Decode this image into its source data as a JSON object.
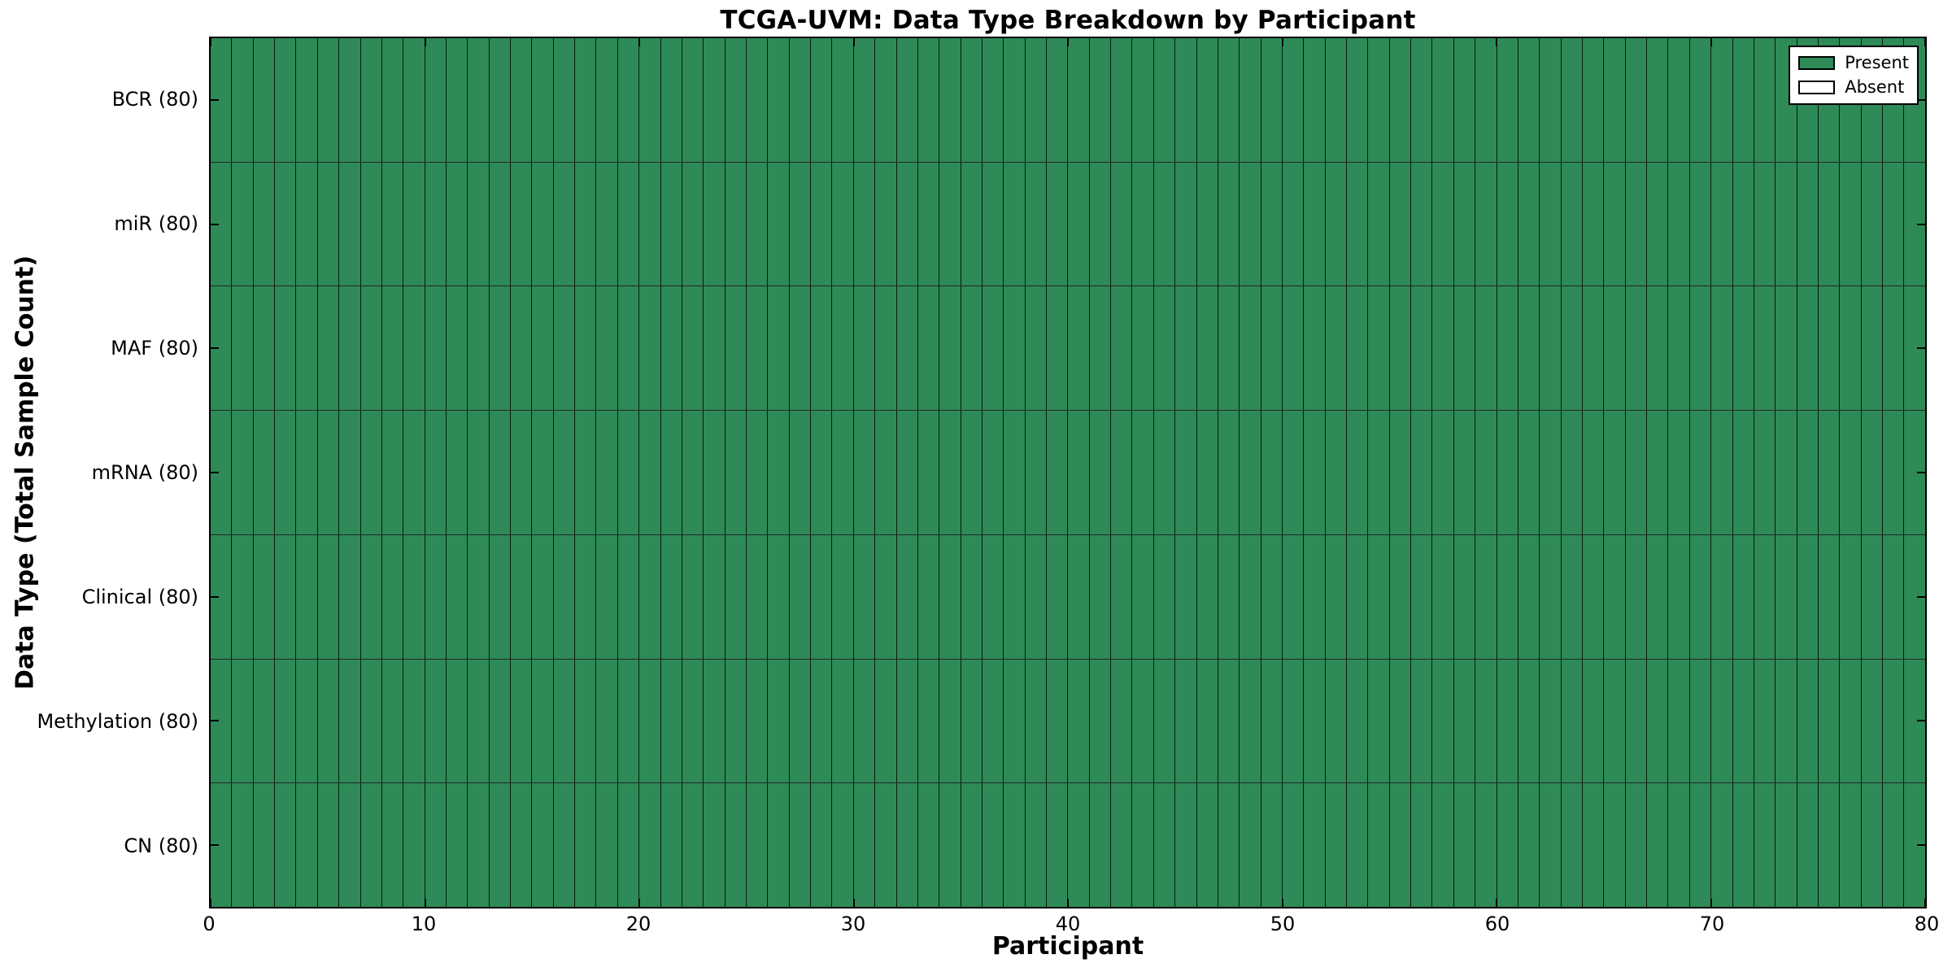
{
  "chart_data": {
    "type": "heatmap",
    "title": "TCGA-UVM: Data Type Breakdown by Participant",
    "xlabel": "Participant",
    "ylabel": "Data Type (Total Sample Count)",
    "xlim": [
      0,
      80
    ],
    "x_ticks": [
      0,
      10,
      20,
      30,
      40,
      50,
      60,
      70,
      80
    ],
    "n_participants": 80,
    "n_rows": 7,
    "rows": [
      {
        "label": "BCR (80)",
        "data_type": "BCR",
        "total_sample_count": 80,
        "present_count": 80,
        "absent_count": 0
      },
      {
        "label": "miR (80)",
        "data_type": "miR",
        "total_sample_count": 80,
        "present_count": 80,
        "absent_count": 0
      },
      {
        "label": "MAF (80)",
        "data_type": "MAF",
        "total_sample_count": 80,
        "present_count": 80,
        "absent_count": 0
      },
      {
        "label": "mRNA (80)",
        "data_type": "mRNA",
        "total_sample_count": 80,
        "present_count": 80,
        "absent_count": 0
      },
      {
        "label": "Clinical (80)",
        "data_type": "Clinical",
        "total_sample_count": 80,
        "present_count": 80,
        "absent_count": 0
      },
      {
        "label": "Methylation (80)",
        "data_type": "Methylation",
        "total_sample_count": 80,
        "present_count": 80,
        "absent_count": 0
      },
      {
        "label": "CN (80)",
        "data_type": "CN",
        "total_sample_count": 80,
        "present_count": 80,
        "absent_count": 0
      }
    ],
    "all_cells_state": "present",
    "grid": "cell-borders",
    "legend": {
      "position": "upper right",
      "entries": [
        {
          "label": "Present",
          "color": "#2e8b57"
        },
        {
          "label": "Absent",
          "color": "#ffffff"
        }
      ]
    },
    "colors": {
      "present": "#2e8b57",
      "absent": "#ffffff",
      "cell_edge": "rgba(0,0,0,0.8)",
      "spine": "#000000",
      "background": "#ffffff"
    }
  }
}
